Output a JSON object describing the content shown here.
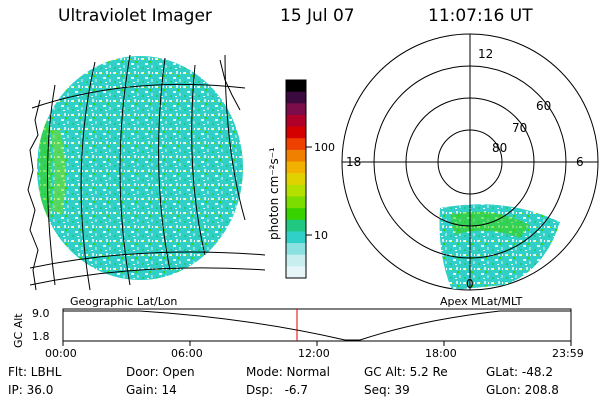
{
  "header": {
    "title": "Ultraviolet Imager",
    "date": "15 Jul 07",
    "time": "11:07:16 UT"
  },
  "colorbar": {
    "label": "photon cm⁻²s⁻¹",
    "tick_100": "100",
    "tick_10": "10",
    "colors": [
      "#000000",
      "#3b0a3e",
      "#7a0d4a",
      "#b0002a",
      "#d40000",
      "#ee4000",
      "#f08000",
      "#f2b000",
      "#e0d200",
      "#b4e000",
      "#7cde00",
      "#38d200",
      "#20c880",
      "#30d0c8",
      "#8be0e0",
      "#c8eef0",
      "#e6f6f8"
    ]
  },
  "geo_panel": {
    "caption": "Geographic Lat/Lon"
  },
  "polar_panel": {
    "caption": "Apex MLat/MLT",
    "mlt_labels": {
      "top": "12",
      "left": "18",
      "right": "6",
      "bottom": "0"
    },
    "lat_labels": [
      "60",
      "70",
      "80"
    ]
  },
  "altitude_plot": {
    "ylabel": "GC Alt",
    "ymax": "9.0",
    "ymin": "1.8",
    "x_ticks": [
      "00:00",
      "06:00",
      "12:00",
      "18:00",
      "23:59"
    ],
    "current_marker_color": "#e00000"
  },
  "info": {
    "flt": "Flt: LBHL",
    "ip": "IP: 36.0",
    "door": "Door: Open",
    "gain": "Gain: 14",
    "mode": "Mode: Normal",
    "dsp": "Dsp:   -6.7",
    "gcalt": "GC Alt: 5.2 Re",
    "seq": "Seq: 39",
    "glat": "GLat: -48.2",
    "glon": "GLon: 208.8"
  }
}
